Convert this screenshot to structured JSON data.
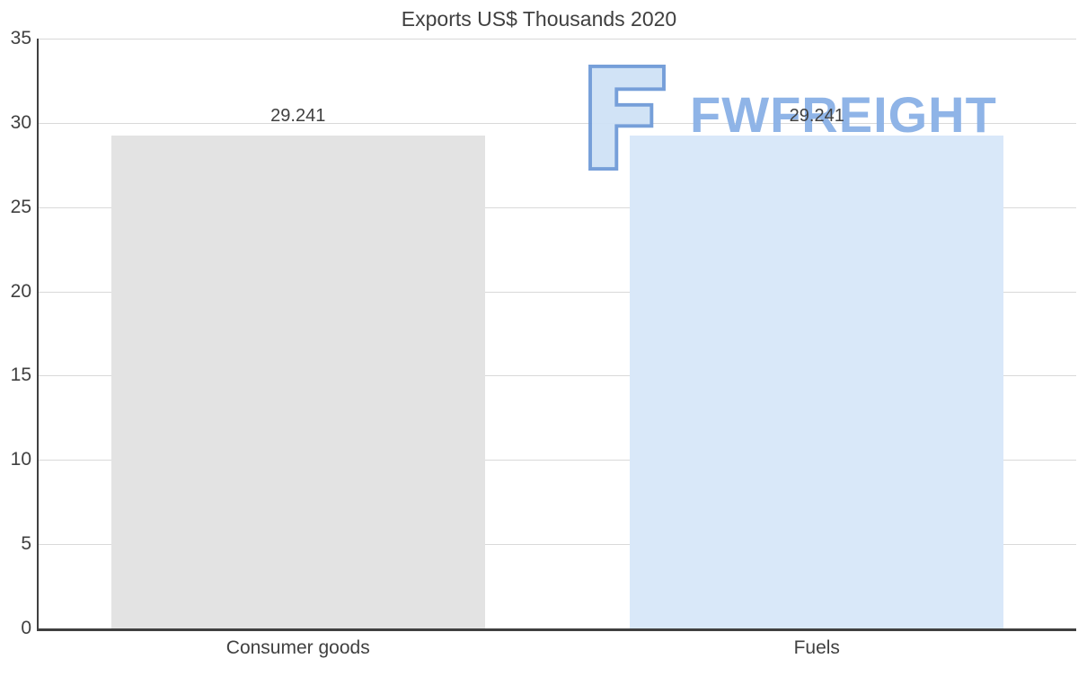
{
  "chart_data": {
    "type": "bar",
    "title": "Exports US$ Thousands 2020",
    "categories": [
      "Consumer goods",
      "Fuels"
    ],
    "values": [
      29.241,
      29.241
    ],
    "value_labels": [
      "29.241",
      "29.241"
    ],
    "bar_colors": [
      "#e3e3e3",
      "#d9e8f9"
    ],
    "ylim": [
      0,
      35
    ],
    "yticks": [
      0,
      5,
      10,
      15,
      20,
      25,
      30,
      35
    ],
    "grid": true,
    "legend": false,
    "xlabel": "",
    "ylabel": ""
  },
  "watermark": {
    "text": "FWFREIGHT",
    "text_color": "#8ab1e6",
    "icon_fill": "#cfe2f6",
    "icon_stroke": "#6f9ad8"
  },
  "colors": {
    "axis": "#404040",
    "grid": "#d9d9d9",
    "text": "#404040",
    "background": "#ffffff"
  }
}
